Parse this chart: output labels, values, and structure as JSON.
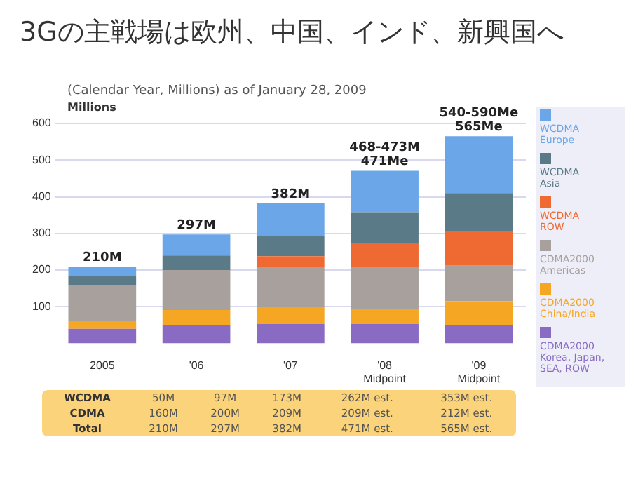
{
  "chart_data": {
    "type": "bar",
    "stacked": true,
    "title": "3Gの主戦場は欧州、中国、インド、新興国へ",
    "subtitle": "(Calendar Year, Millions) as of January 28, 2009",
    "ylabel": "Millions",
    "categories": [
      "2005",
      "'06",
      "'07",
      "'08\nMidpoint",
      "'09\nMidpoint"
    ],
    "series": [
      {
        "name": "CDMA2000\nKorea, Japan,\nSEA, ROW",
        "color": "#8a6bc4",
        "values": [
          40,
          49,
          53,
          53,
          49
        ]
      },
      {
        "name": "CDMA2000\nChina/India",
        "color": "#f5a623",
        "values": [
          22,
          42,
          46,
          40,
          66
        ]
      },
      {
        "name": "CDMA2000\nAmericas",
        "color": "#a8a09c",
        "values": [
          97,
          109,
          110,
          116,
          97
        ]
      },
      {
        "name": "WCDMA\nROW",
        "color": "#ef6a33",
        "values": [
          0,
          0,
          29,
          65,
          94
        ]
      },
      {
        "name": "WCDMA\nAsia",
        "color": "#5a7a88",
        "values": [
          25,
          40,
          55,
          84,
          104
        ]
      },
      {
        "name": "WCDMA\nEurope",
        "color": "#6aa6e8",
        "values": [
          25,
          57,
          89,
          113,
          155
        ]
      }
    ],
    "ylim": [
      0,
      600
    ],
    "yticks": [
      100,
      200,
      300,
      400,
      500,
      600
    ],
    "grid": "y",
    "legend": "right",
    "totals": [
      "210M",
      "297M",
      "382M",
      "468-473M\n471Me",
      "540-590Me\n565Me"
    ],
    "annotations": [
      "WCDMA",
      "50M",
      "97M",
      "173M",
      "262M est.",
      "353M est.",
      "CDMA",
      "160M",
      "200M",
      "209M",
      "209M est.",
      "212M est.",
      "Total",
      "210M",
      "297M",
      "382M",
      "471M est.",
      "565M est."
    ]
  }
}
